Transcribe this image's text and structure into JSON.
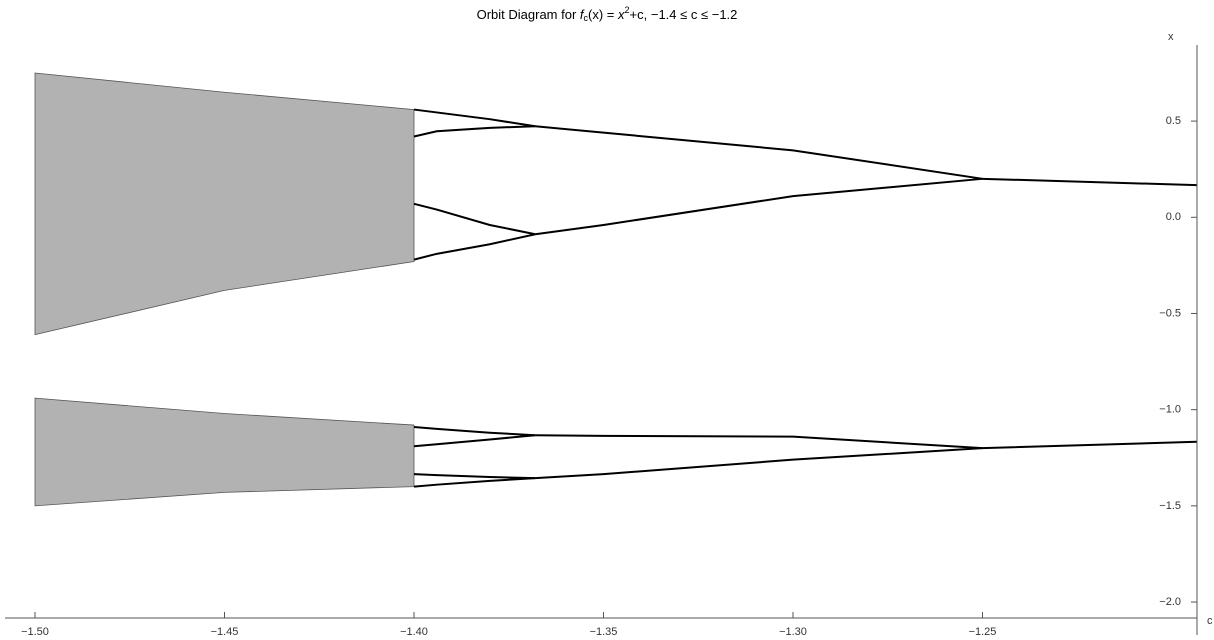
{
  "chart_data": {
    "type": "line",
    "title": [
      "Orbit Diagram for ",
      "f",
      "c",
      "(x) = ",
      "x",
      "2",
      "+c, −1.4 ≤ c ≤ −1.2"
    ],
    "xlabel": "c",
    "ylabel": "x",
    "xlim": [
      -1.5,
      -1.1934
    ],
    "ylim": [
      -2.083,
      0.88
    ],
    "xticks": [
      {
        "value": -1.5,
        "label": "−1.50"
      },
      {
        "value": -1.45,
        "label": "−1.45"
      },
      {
        "value": -1.4,
        "label": "−1.40"
      },
      {
        "value": -1.35,
        "label": "−1.35"
      },
      {
        "value": -1.3,
        "label": "−1.30"
      },
      {
        "value": -1.25,
        "label": "−1.25"
      }
    ],
    "yticks": [
      {
        "value": 0.5,
        "label": "0.5"
      },
      {
        "value": 0,
        "label": "0.0"
      },
      {
        "value": -0.5,
        "label": "−0.5"
      },
      {
        "value": -1,
        "label": "−1.0"
      },
      {
        "value": -1.5,
        "label": "−1.5"
      },
      {
        "value": -2,
        "label": "−2.0"
      }
    ],
    "series": [
      {
        "color": "#000000",
        "x": [
          -1.25,
          -1.2,
          -1.1934
        ],
        "values": [
          0.2,
          0.171,
          0.167
        ]
      },
      {
        "color": "#000000",
        "x": [
          -1.25,
          -1.2,
          -1.1934
        ],
        "values": [
          -1.2,
          -1.171,
          -1.167
        ]
      },
      {
        "color": "#000000",
        "x": [
          -1.368,
          -1.35,
          -1.3,
          -1.25
        ],
        "values": [
          0.473,
          0.44,
          0.348,
          0.2
        ]
      },
      {
        "color": "#000000",
        "x": [
          -1.368,
          -1.35,
          -1.3,
          -1.25
        ],
        "values": [
          -0.088,
          -0.04,
          0.11,
          0.2
        ]
      },
      {
        "color": "#000000",
        "x": [
          -1.368,
          -1.35,
          -1.3,
          -1.25
        ],
        "values": [
          -1.133,
          -1.136,
          -1.14,
          -1.2
        ]
      },
      {
        "color": "#000000",
        "x": [
          -1.368,
          -1.35,
          -1.3,
          -1.25
        ],
        "values": [
          -1.356,
          -1.335,
          -1.26,
          -1.2
        ]
      },
      {
        "color": "#000000",
        "x": [
          -1.4,
          -1.394,
          -1.38,
          -1.368
        ],
        "values": [
          0.56,
          0.545,
          0.51,
          0.473
        ]
      },
      {
        "color": "#000000",
        "x": [
          -1.4,
          -1.394,
          -1.38,
          -1.368
        ],
        "values": [
          0.42,
          0.447,
          0.465,
          0.473
        ]
      },
      {
        "color": "#000000",
        "x": [
          -1.4,
          -1.394,
          -1.38,
          -1.368
        ],
        "values": [
          0.07,
          0.04,
          -0.04,
          -0.088
        ]
      },
      {
        "color": "#000000",
        "x": [
          -1.4,
          -1.394,
          -1.38,
          -1.368
        ],
        "values": [
          -0.22,
          -0.19,
          -0.14,
          -0.088
        ]
      },
      {
        "color": "#000000",
        "x": [
          -1.4,
          -1.394,
          -1.38,
          -1.368
        ],
        "values": [
          -1.09,
          -1.1,
          -1.12,
          -1.133
        ]
      },
      {
        "color": "#000000",
        "x": [
          -1.4,
          -1.394,
          -1.38,
          -1.368
        ],
        "values": [
          -1.19,
          -1.18,
          -1.155,
          -1.133
        ]
      },
      {
        "color": "#000000",
        "x": [
          -1.4,
          -1.394,
          -1.38,
          -1.368
        ],
        "values": [
          -1.335,
          -1.34,
          -1.35,
          -1.356
        ]
      },
      {
        "color": "#000000",
        "x": [
          -1.4,
          -1.394,
          -1.38,
          -1.368
        ],
        "values": [
          -1.4,
          -1.39,
          -1.37,
          -1.356
        ]
      }
    ],
    "bands": [
      {
        "color": "#555555",
        "x": [
          -1.5,
          -1.45,
          -1.4
        ],
        "upper": [
          0.75,
          0.65,
          0.56
        ],
        "lower": [
          -0.61,
          -0.38,
          -0.23
        ]
      },
      {
        "color": "#555555",
        "x": [
          -1.5,
          -1.45,
          -1.4
        ],
        "upper": [
          -0.94,
          -1.02,
          -1.08
        ],
        "lower": [
          -1.5,
          -1.43,
          -1.4
        ]
      }
    ]
  }
}
